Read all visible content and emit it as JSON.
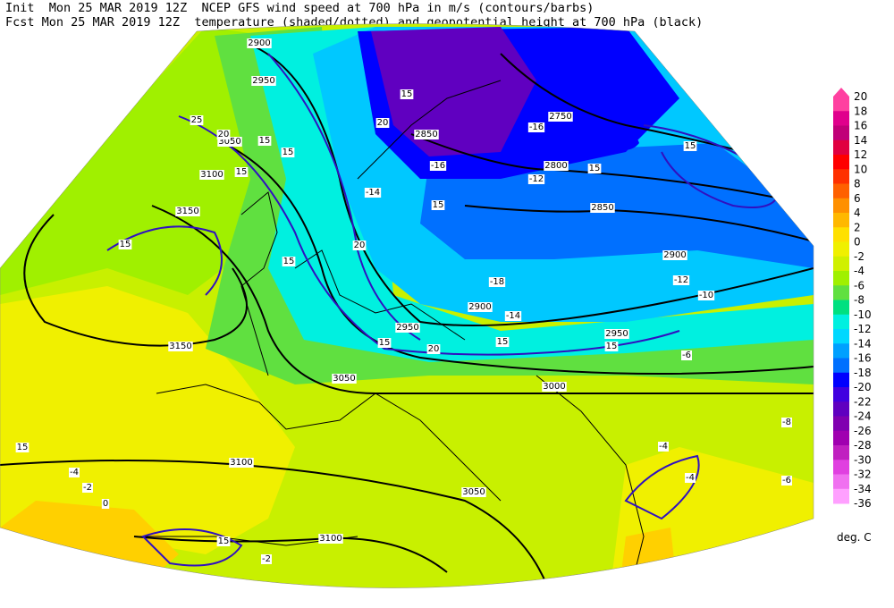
{
  "header": {
    "line1": "Init  Mon 25 MAR 2019 12Z  NCEP GFS wind speed at 700 hPa in m/s (contours/barbs)",
    "line2": "Fcst Mon 25 MAR 2019 12Z  temperature (shaded/dotted) and geopotential height at 700 hPa (black)"
  },
  "colorbar": {
    "levels": [
      20,
      18,
      16,
      14,
      12,
      10,
      8,
      6,
      4,
      2,
      0,
      -2,
      -4,
      -6,
      -8,
      -10,
      -12,
      -14,
      -16,
      -18,
      -20,
      -22,
      -24,
      -26,
      -28,
      -30,
      -32,
      -34,
      -36
    ],
    "colors": [
      "#ff40a0",
      "#e0008c",
      "#c00078",
      "#e00040",
      "#ff0000",
      "#ff3000",
      "#ff6000",
      "#ff9000",
      "#ffb800",
      "#ffe000",
      "#f0f000",
      "#d0f000",
      "#a0f000",
      "#60e040",
      "#00e080",
      "#00f0e0",
      "#00d8ff",
      "#00a0ff",
      "#0070ff",
      "#0000ff",
      "#4000e0",
      "#6000c0",
      "#8000b0",
      "#a000b0",
      "#c020c0",
      "#e040e0",
      "#f070f0",
      "#ffa0ff"
    ],
    "unit": "deg. C"
  },
  "map": {
    "height_labels": [
      2900,
      2950,
      3050,
      3100,
      3150,
      3150,
      2850,
      2750,
      2800,
      2850,
      2900,
      2900,
      2950,
      2950,
      3000,
      3050,
      3100,
      3050,
      3100
    ],
    "wind_labels": [
      15,
      20,
      25,
      20,
      15,
      15,
      15,
      15,
      15,
      20,
      15,
      20,
      15,
      15,
      15,
      15,
      15,
      15,
      15
    ],
    "temp_labels": [
      -14,
      -16,
      -18,
      -12,
      -10,
      -14,
      -6,
      -4,
      -4,
      -2,
      -6,
      -4,
      0,
      -2,
      -8,
      -16,
      -12
    ]
  }
}
